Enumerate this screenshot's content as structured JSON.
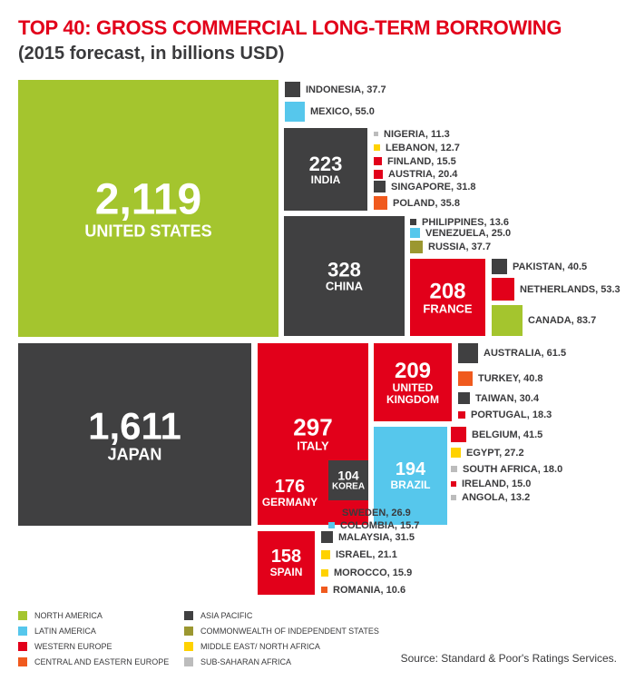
{
  "chart_data": {
    "type": "treemap",
    "title": "TOP 40: GROSS COMMERCIAL LONG-TERM BORROWING",
    "subtitle": "(2015 forecast, in billions USD)",
    "source": "Source: Standard & Poor's Ratings Services.",
    "items": [
      {
        "name": "UNITED STATES",
        "value": "2,119",
        "region": "north_america"
      },
      {
        "name": "JAPAN",
        "value": "1,611",
        "region": "asia_pacific"
      },
      {
        "name": "CHINA",
        "value": "328",
        "region": "asia_pacific"
      },
      {
        "name": "ITALY",
        "value": "297",
        "region": "western_europe"
      },
      {
        "name": "INDIA",
        "value": "223",
        "region": "asia_pacific"
      },
      {
        "name": "UNITED KINGDOM",
        "value": "209",
        "region": "western_europe"
      },
      {
        "name": "FRANCE",
        "value": "208",
        "region": "western_europe"
      },
      {
        "name": "BRAZIL",
        "value": "194",
        "region": "latin_america"
      },
      {
        "name": "GERMANY",
        "value": "176",
        "region": "western_europe"
      },
      {
        "name": "SPAIN",
        "value": "158",
        "region": "western_europe"
      },
      {
        "name": "KOREA",
        "value": "104",
        "region": "asia_pacific"
      },
      {
        "name": "INDONESIA",
        "value": "37.7",
        "region": "asia_pacific"
      },
      {
        "name": "MEXICO",
        "value": "55.0",
        "region": "latin_america"
      },
      {
        "name": "NIGERIA",
        "value": "11.3",
        "region": "sub_saharan_africa"
      },
      {
        "name": "LEBANON",
        "value": "12.7",
        "region": "middle_east_north_africa"
      },
      {
        "name": "FINLAND",
        "value": "15.5",
        "region": "western_europe"
      },
      {
        "name": "AUSTRIA",
        "value": "20.4",
        "region": "western_europe"
      },
      {
        "name": "SINGAPORE",
        "value": "31.8",
        "region": "asia_pacific"
      },
      {
        "name": "POLAND",
        "value": "35.8",
        "region": "central_eastern_europe"
      },
      {
        "name": "PHILIPPINES",
        "value": "13.6",
        "region": "asia_pacific"
      },
      {
        "name": "VENEZUELA",
        "value": "25.0",
        "region": "latin_america"
      },
      {
        "name": "RUSSIA",
        "value": "37.7",
        "region": "cis"
      },
      {
        "name": "PAKISTAN",
        "value": "40.5",
        "region": "asia_pacific"
      },
      {
        "name": "NETHERLANDS",
        "value": "53.3",
        "region": "western_europe"
      },
      {
        "name": "CANADA",
        "value": "83.7",
        "region": "north_america"
      },
      {
        "name": "AUSTRALIA",
        "value": "61.5",
        "region": "asia_pacific"
      },
      {
        "name": "TURKEY",
        "value": "40.8",
        "region": "central_eastern_europe"
      },
      {
        "name": "TAIWAN",
        "value": "30.4",
        "region": "asia_pacific"
      },
      {
        "name": "PORTUGAL",
        "value": "18.3",
        "region": "western_europe"
      },
      {
        "name": "BELGIUM",
        "value": "41.5",
        "region": "western_europe"
      },
      {
        "name": "EGYPT",
        "value": "27.2",
        "region": "middle_east_north_africa"
      },
      {
        "name": "SOUTH AFRICA",
        "value": "18.0",
        "region": "sub_saharan_africa"
      },
      {
        "name": "IRELAND",
        "value": "15.0",
        "region": "western_europe"
      },
      {
        "name": "ANGOLA",
        "value": "13.2",
        "region": "sub_saharan_africa"
      },
      {
        "name": "SWEDEN",
        "value": "26.9",
        "region": "western_europe"
      },
      {
        "name": "COLOMBIA",
        "value": "15.7",
        "region": "latin_america"
      },
      {
        "name": "MALAYSIA",
        "value": "31.5",
        "region": "asia_pacific"
      },
      {
        "name": "ISRAEL",
        "value": "21.1",
        "region": "middle_east_north_africa"
      },
      {
        "name": "MOROCCO",
        "value": "15.9",
        "region": "middle_east_north_africa"
      },
      {
        "name": "ROMANIA",
        "value": "10.6",
        "region": "central_eastern_europe"
      }
    ],
    "legend": [
      {
        "key": "north_america",
        "label": "NORTH AMERICA",
        "color": "#a4c52e"
      },
      {
        "key": "latin_america",
        "label": "LATIN AMERICA",
        "color": "#56c7ec"
      },
      {
        "key": "western_europe",
        "label": "WESTERN EUROPE",
        "color": "#e2001a"
      },
      {
        "key": "central_eastern_europe",
        "label": "CENTRAL AND EASTERN EUROPE",
        "color": "#f05a1e"
      },
      {
        "key": "asia_pacific",
        "label": "ASIA PACIFIC",
        "color": "#404041"
      },
      {
        "key": "cis",
        "label": "COMMONWEALTH OF INDEPENDENT STATES",
        "color": "#9b9730"
      },
      {
        "key": "middle_east_north_africa",
        "label": "MIDDLE EAST/ NORTH AFRICA",
        "color": "#ffd200"
      },
      {
        "key": "sub_saharan_africa",
        "label": "SUB-SAHARAN AFRICA",
        "color": "#bcbcbc"
      }
    ]
  }
}
